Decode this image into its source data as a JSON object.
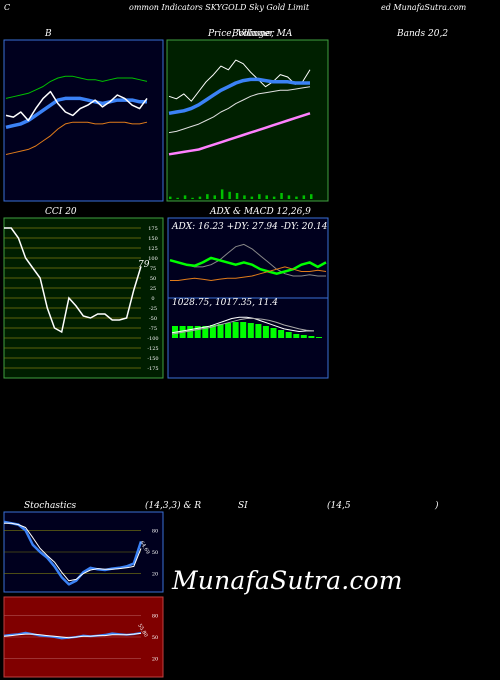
{
  "header": {
    "c": "C",
    "title_mid": "ommon Indicators SKYGOLD Sky Gold Limit",
    "title_right": "ed MunafaSutra.com"
  },
  "labels": {
    "bb_left": "B",
    "bb_mid": "Price, Volume, MA",
    "bb_mid2": "Bollinger",
    "bb_right": "Bands 20,2",
    "cci": "CCI 20",
    "adx_macd": "ADX  & MACD 12,26,9",
    "adx_values": "ADX: 16.23  +DY: 27.94  -DY: 20.14",
    "macd_values": "1028.75,  1017.35,  11.4",
    "stoch_left": "Stochastics",
    "stoch_mid": "(14,3,3) & R",
    "rsi_mid": "SI",
    "rsi_right": "(14,5",
    "rsi_paren": ")",
    "cci_value": "79",
    "stoch_value": "64.69",
    "rsi_value": "55.80"
  },
  "watermark": "MunafaSutra.com",
  "colors": {
    "bb_bg": "#00001e",
    "price_bg": "#002000",
    "cci_bg": "#001e00",
    "adx_bg": "#00001e",
    "stoch_bg": "#00001e",
    "rsi_bg": "#800000"
  },
  "chart_data": [
    {
      "type": "line",
      "panel": "bollinger_bands",
      "series": [
        {
          "name": "upper",
          "color": "#00c000",
          "values": [
            118,
            119,
            120,
            121,
            123,
            125,
            128,
            130,
            131,
            131,
            130,
            129,
            129,
            128,
            129,
            130,
            130,
            130,
            129,
            128
          ]
        },
        {
          "name": "middle",
          "color": "#3b82f6",
          "values": [
            101,
            102,
            103,
            105,
            108,
            111,
            114,
            117,
            118,
            118,
            118,
            117,
            116,
            115,
            116,
            117,
            117,
            117,
            116,
            116
          ]
        },
        {
          "name": "lower",
          "color": "#e07b1a",
          "values": [
            85,
            86,
            87,
            88,
            90,
            93,
            96,
            100,
            103,
            104,
            104,
            104,
            103,
            103,
            104,
            104,
            104,
            103,
            103,
            104
          ]
        },
        {
          "name": "price",
          "color": "#ffffff",
          "values": [
            108,
            107,
            110,
            105,
            112,
            118,
            122,
            115,
            110,
            108,
            112,
            114,
            117,
            113,
            116,
            120,
            118,
            114,
            112,
            118
          ]
        }
      ]
    },
    {
      "type": "line",
      "panel": "price_volume_ma",
      "series": [
        {
          "name": "price",
          "color": "#ffffff",
          "values": [
            110,
            108,
            112,
            106,
            114,
            122,
            128,
            135,
            132,
            140,
            137,
            130,
            124,
            118,
            122,
            128,
            126,
            120,
            122,
            132
          ]
        },
        {
          "name": "ma_short",
          "color": "#3b82f6",
          "values": [
            96,
            97,
            98,
            100,
            103,
            107,
            111,
            115,
            118,
            121,
            123,
            124,
            124,
            123,
            122,
            122,
            122,
            121,
            121,
            121
          ]
        },
        {
          "name": "ma_mid",
          "color": "#e0e0e0",
          "values": [
            80,
            81,
            83,
            85,
            87,
            90,
            93,
            97,
            100,
            104,
            107,
            110,
            112,
            113,
            114,
            115,
            115,
            116,
            117,
            118
          ]
        },
        {
          "name": "ma_long",
          "color": "#ff80ff",
          "values": [
            62,
            63,
            64,
            65,
            66,
            68,
            70,
            72,
            74,
            76,
            78,
            80,
            82,
            84,
            86,
            88,
            90,
            92,
            94,
            96
          ]
        }
      ],
      "volume": [
        2,
        1,
        3,
        1,
        2,
        4,
        3,
        8,
        6,
        5,
        3,
        2,
        4,
        3,
        2,
        5,
        3,
        2,
        3,
        4
      ]
    },
    {
      "type": "line",
      "panel": "cci",
      "ticks": [
        175,
        150,
        125,
        100,
        75,
        50,
        25,
        0,
        -25,
        -50,
        -75,
        -100,
        -125,
        -150,
        -175
      ],
      "ylim": [
        -175,
        175
      ],
      "values": [
        175,
        175,
        150,
        100,
        75,
        50,
        -25,
        -75,
        -85,
        0,
        -20,
        -45,
        -50,
        -40,
        -40,
        -55,
        -55,
        -50,
        20,
        79
      ]
    },
    {
      "type": "line",
      "panel": "adx",
      "series": [
        {
          "name": "adx",
          "color": "#888888",
          "values": [
            30,
            28,
            26,
            24,
            24,
            26,
            30,
            36,
            42,
            44,
            40,
            34,
            28,
            22,
            18,
            16,
            16,
            17,
            16,
            16
          ]
        },
        {
          "name": "plus_di",
          "color": "#00ff00",
          "values": [
            30,
            28,
            26,
            25,
            28,
            32,
            30,
            28,
            26,
            28,
            26,
            22,
            20,
            18,
            20,
            22,
            26,
            28,
            24,
            28
          ]
        },
        {
          "name": "minus_di",
          "color": "#e07b1a",
          "values": [
            12,
            12,
            13,
            14,
            13,
            12,
            13,
            14,
            14,
            15,
            16,
            18,
            20,
            22,
            24,
            22,
            20,
            20,
            21,
            20
          ]
        }
      ]
    },
    {
      "type": "line",
      "panel": "macd",
      "series": [
        {
          "name": "macd",
          "color": "#ffffff",
          "values": [
            8,
            10,
            12,
            14,
            16,
            18,
            22,
            26,
            30,
            32,
            32,
            30,
            26,
            22,
            18,
            14,
            12,
            10,
            11,
            11
          ]
        },
        {
          "name": "signal",
          "color": "#aaaaaa",
          "values": [
            6,
            8,
            10,
            12,
            14,
            16,
            19,
            22,
            25,
            28,
            30,
            30,
            29,
            27,
            24,
            20,
            17,
            14,
            12,
            11
          ]
        }
      ],
      "histogram": [
        12,
        12,
        12,
        12,
        12,
        13,
        14,
        15,
        16,
        16,
        15,
        14,
        12,
        10,
        8,
        6,
        4,
        3,
        2,
        1
      ]
    },
    {
      "type": "line",
      "panel": "stochastics",
      "ticks": [
        80,
        50,
        20
      ],
      "ylim": [
        0,
        100
      ],
      "series": [
        {
          "name": "k",
          "color": "#3b82f6",
          "values": [
            92,
            90,
            88,
            80,
            60,
            50,
            42,
            30,
            15,
            5,
            10,
            22,
            28,
            26,
            25,
            27,
            28,
            30,
            34,
            64.69
          ]
        },
        {
          "name": "d",
          "color": "#ffffff",
          "values": [
            90,
            90,
            88,
            84,
            70,
            55,
            45,
            36,
            22,
            10,
            12,
            20,
            25,
            27,
            26,
            26,
            27,
            28,
            30,
            55
          ]
        }
      ]
    },
    {
      "type": "line",
      "panel": "rsi",
      "ticks": [
        80,
        50,
        20
      ],
      "ylim": [
        0,
        100
      ],
      "series": [
        {
          "name": "rsi",
          "color": "#3b82f6",
          "values": [
            52,
            53,
            54,
            56,
            54,
            52,
            51,
            50,
            48,
            49,
            50,
            52,
            51,
            52,
            53,
            55,
            54,
            53,
            54,
            55.8
          ]
        },
        {
          "name": "rsi_smooth",
          "color": "#ffffff",
          "values": [
            51,
            52,
            53,
            54,
            54,
            53,
            52,
            51,
            50,
            49,
            50,
            51,
            51,
            52,
            52,
            53,
            53,
            53,
            54,
            55
          ]
        }
      ]
    }
  ]
}
